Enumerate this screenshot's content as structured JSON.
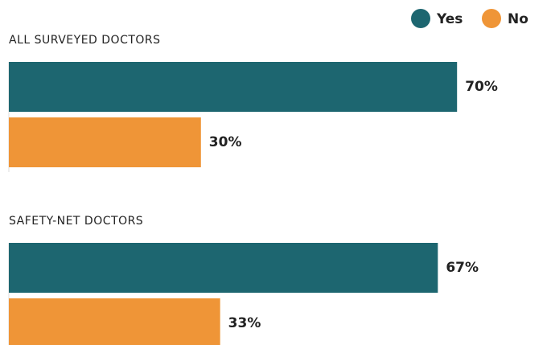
{
  "chart_data": {
    "type": "bar",
    "orientation": "horizontal",
    "categories": [
      "ALL SURVEYED DOCTORS",
      "SAFETY-NET DOCTORS"
    ],
    "series": [
      {
        "name": "Yes",
        "color": "#1d6670",
        "values": [
          70,
          67
        ],
        "value_labels": [
          "70%",
          "67%"
        ]
      },
      {
        "name": "No",
        "color": "#ef9537",
        "values": [
          30,
          33
        ],
        "value_labels": [
          "30%",
          "33%"
        ]
      }
    ],
    "legend": "top-right"
  }
}
